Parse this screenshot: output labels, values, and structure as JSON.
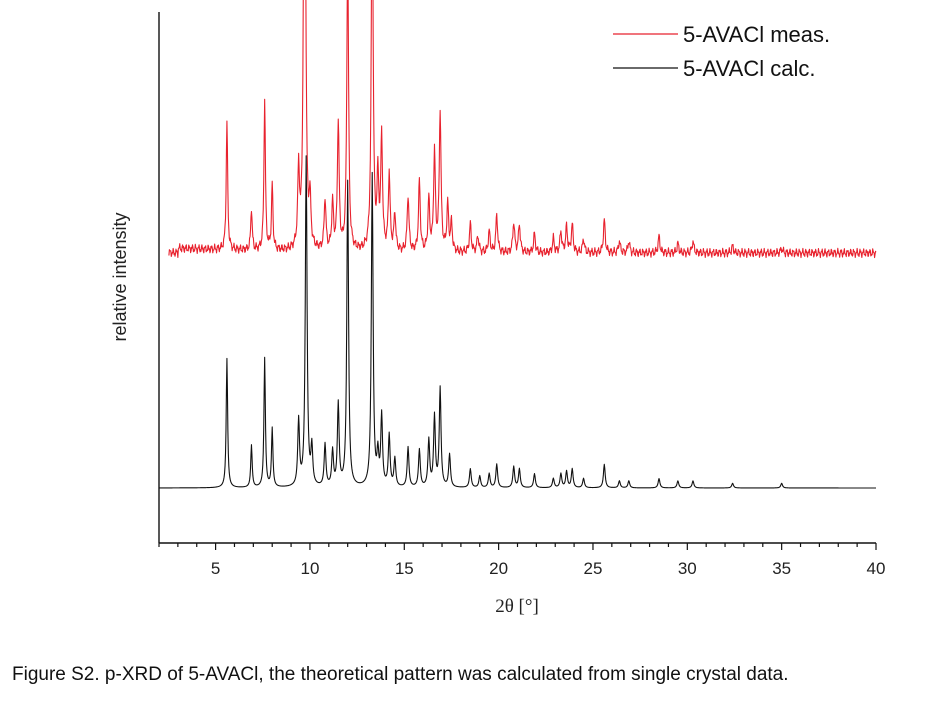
{
  "caption": "Figure S2. p-XRD of 5-AVACl, the theoretical pattern was calculated from single crystal data.",
  "chart_data": {
    "type": "line",
    "xlabel": "2θ [°]",
    "ylabel": "relative intensity",
    "xlim": [
      2,
      40
    ],
    "xticks": [
      5,
      10,
      15,
      20,
      25,
      30,
      35,
      40
    ],
    "xtick_labels": [
      "5",
      "10",
      "15",
      "20",
      "25",
      "30",
      "35",
      "40"
    ],
    "minor_tick_step": 1,
    "y_ticks_shown": false,
    "grid": false,
    "legend_position": "top-right",
    "series": [
      {
        "name": "5-AVACl meas.",
        "color": "#e8222e",
        "baseline": 1.0,
        "peaks": [
          [
            5.6,
            0.55
          ],
          [
            6.9,
            0.18
          ],
          [
            7.6,
            0.65
          ],
          [
            8.0,
            0.28
          ],
          [
            9.4,
            0.33
          ],
          [
            9.7,
            1.75
          ],
          [
            9.75,
            0.78
          ],
          [
            10.0,
            0.2
          ],
          [
            10.8,
            0.22
          ],
          [
            11.2,
            0.2
          ],
          [
            11.5,
            0.55
          ],
          [
            12.0,
            1.28
          ],
          [
            13.3,
            1.68
          ],
          [
            13.6,
            0.3
          ],
          [
            13.8,
            0.48
          ],
          [
            14.2,
            0.33
          ],
          [
            14.5,
            0.16
          ],
          [
            15.2,
            0.24
          ],
          [
            15.8,
            0.3
          ],
          [
            16.3,
            0.22
          ],
          [
            16.6,
            0.42
          ],
          [
            16.9,
            0.6
          ],
          [
            17.3,
            0.2
          ],
          [
            17.5,
            0.12
          ],
          [
            18.5,
            0.12
          ],
          [
            18.9,
            0.07
          ],
          [
            19.5,
            0.09
          ],
          [
            19.9,
            0.16
          ],
          [
            20.8,
            0.13
          ],
          [
            21.1,
            0.12
          ],
          [
            21.9,
            0.08
          ],
          [
            22.9,
            0.06
          ],
          [
            23.3,
            0.09
          ],
          [
            23.6,
            0.11
          ],
          [
            23.9,
            0.12
          ],
          [
            24.5,
            0.06
          ],
          [
            25.6,
            0.14
          ],
          [
            26.4,
            0.05
          ],
          [
            26.9,
            0.05
          ],
          [
            28.5,
            0.07
          ],
          [
            29.5,
            0.04
          ],
          [
            30.3,
            0.05
          ],
          [
            32.4,
            0.03
          ],
          [
            35.0,
            0.02
          ]
        ]
      },
      {
        "name": "5-AVACl calc.",
        "color": "#111111",
        "baseline": 0.0,
        "peaks": [
          [
            5.6,
            0.55
          ],
          [
            6.9,
            0.18
          ],
          [
            7.6,
            0.55
          ],
          [
            8.0,
            0.25
          ],
          [
            9.4,
            0.28
          ],
          [
            9.8,
            1.4
          ],
          [
            10.1,
            0.16
          ],
          [
            10.8,
            0.18
          ],
          [
            11.2,
            0.15
          ],
          [
            11.5,
            0.35
          ],
          [
            12.0,
            1.3
          ],
          [
            13.3,
            1.33
          ],
          [
            13.6,
            0.13
          ],
          [
            13.8,
            0.3
          ],
          [
            14.2,
            0.22
          ],
          [
            14.5,
            0.12
          ],
          [
            15.2,
            0.17
          ],
          [
            15.8,
            0.16
          ],
          [
            16.3,
            0.2
          ],
          [
            16.6,
            0.3
          ],
          [
            16.9,
            0.42
          ],
          [
            17.4,
            0.14
          ],
          [
            18.5,
            0.08
          ],
          [
            19.0,
            0.05
          ],
          [
            19.5,
            0.06
          ],
          [
            19.9,
            0.1
          ],
          [
            20.8,
            0.09
          ],
          [
            21.1,
            0.08
          ],
          [
            21.9,
            0.06
          ],
          [
            22.9,
            0.04
          ],
          [
            23.3,
            0.06
          ],
          [
            23.6,
            0.07
          ],
          [
            23.9,
            0.08
          ],
          [
            24.5,
            0.04
          ],
          [
            25.6,
            0.1
          ],
          [
            26.4,
            0.03
          ],
          [
            26.9,
            0.03
          ],
          [
            28.5,
            0.04
          ],
          [
            29.5,
            0.03
          ],
          [
            30.3,
            0.03
          ],
          [
            32.4,
            0.02
          ],
          [
            35.0,
            0.02
          ]
        ]
      }
    ]
  }
}
